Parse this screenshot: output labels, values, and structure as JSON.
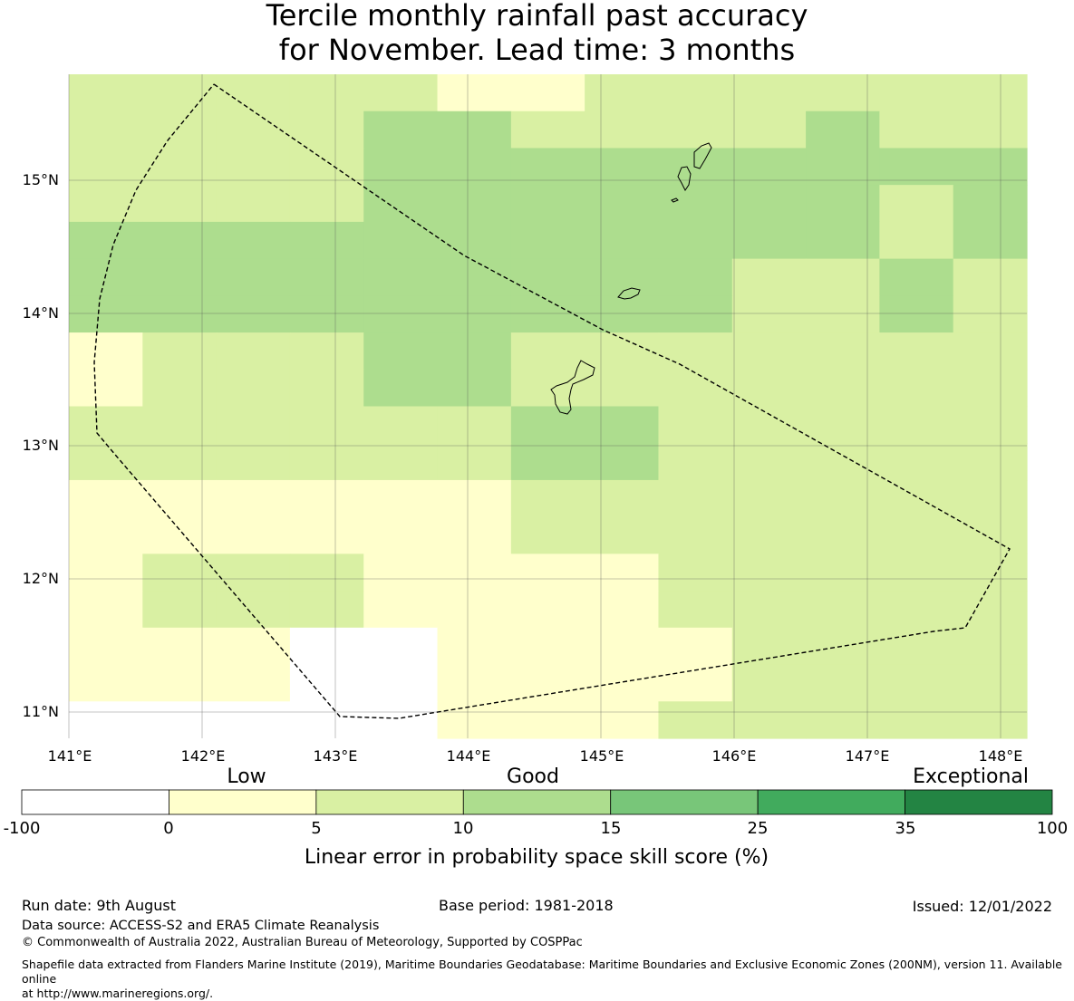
{
  "title": {
    "line1": "Tercile monthly rainfall past accuracy",
    "line2": "for November. Lead time: 3 months"
  },
  "map": {
    "lon_ticks": [
      "141°E",
      "142°E",
      "143°E",
      "144°E",
      "145°E",
      "146°E",
      "147°E",
      "148°E"
    ],
    "lat_ticks": [
      "15°N",
      "14°N",
      "13°N",
      "12°N",
      "11°N"
    ],
    "cell_colors_by_class": {
      "0": "#ffffff",
      "1": "#ffffcc",
      "2": "#d9f0a3",
      "3": "#addd8e"
    },
    "cell_rows_north_to_south": [
      "2222211222222",
      "2222332222322",
      "2222333333333",
      "2222333333323",
      "3333333333323",
      "3333333332232",
      "3333333332232",
      "1222332222222",
      "1222332222222",
      "2222223322222",
      "2222223322222",
      "1111112222222",
      "1111112222222",
      "1222111122222",
      "1222111122222",
      "1110011112222",
      "1110011112222",
      "0000011122222"
    ]
  },
  "legend": {
    "category_labels": [
      "Low",
      "Good",
      "Exceptional"
    ],
    "bins": [
      {
        "from": -100,
        "to": 0,
        "color": "#ffffff"
      },
      {
        "from": 0,
        "to": 5,
        "color": "#ffffcc"
      },
      {
        "from": 5,
        "to": 10,
        "color": "#d9f0a3"
      },
      {
        "from": 10,
        "to": 15,
        "color": "#addd8e"
      },
      {
        "from": 15,
        "to": 25,
        "color": "#78c679"
      },
      {
        "from": 25,
        "to": 35,
        "color": "#41ab5d"
      },
      {
        "from": 35,
        "to": 100,
        "color": "#238443"
      }
    ],
    "tick_labels": [
      "-100",
      "0",
      "5",
      "10",
      "15",
      "25",
      "35",
      "100"
    ],
    "axis_label": "Linear error in probability space skill score (%)"
  },
  "footer": {
    "run_date": "Run date: 9th August",
    "base_period": "Base period: 1981-2018",
    "issued": "Issued: 12/01/2022",
    "data_source": "Data source: ACCESS-S2 and ERA5 Climate Reanalysis",
    "copyright": "© Commonwealth of Australia 2022, Australian Bureau of Meteorology, Supported by COSPPac",
    "shapefile_line1": "Shapefile data extracted from Flanders Marine Institute (2019), Maritime Boundaries Geodatabase: Maritime Boundaries and Exclusive Economic Zones (200NM), version 11. Available online",
    "shapefile_line2": "at http://www.marineregions.org/."
  }
}
